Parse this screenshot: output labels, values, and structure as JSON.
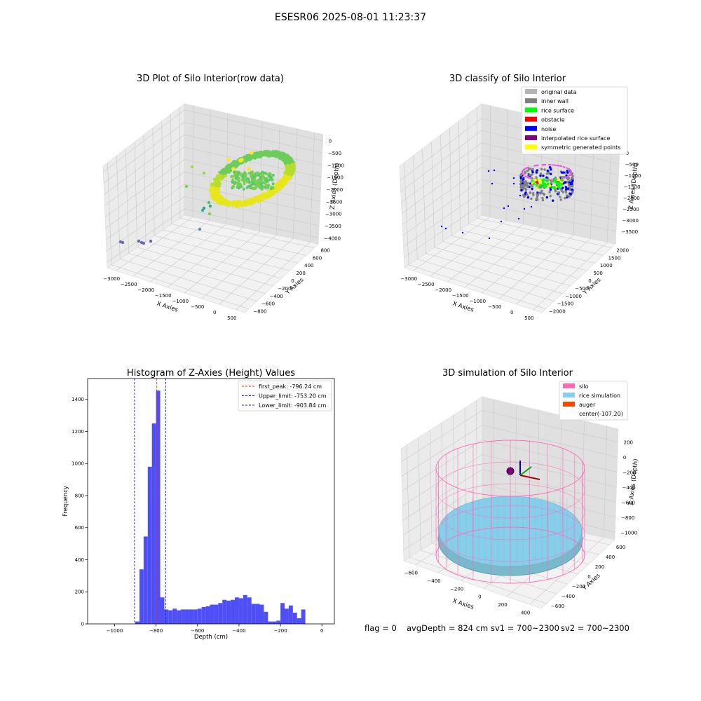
{
  "suptitle": "ESESR06 2025-08-01 11:23:37",
  "colors": {
    "hist_bar": "#4f4ff8",
    "first_peak": "#ee2222",
    "limit_line": "#2222cc",
    "silo": "#ff69b4",
    "rice_simulation": "#87ceeb",
    "auger": "#ff4500",
    "original_data": "#b3b3b3",
    "inner_wall": "#808080",
    "rice_surface": "#00ff00",
    "obstacle": "#ff0000",
    "noise": "#0000ff",
    "interpolated_rice_surface": "#800080",
    "symmetric_generated_points": "#ffff00"
  },
  "footer": {
    "flag": "flag = 0",
    "avg_depth": "avgDepth = 824 cm",
    "sv1": "sv1 = 700~2300",
    "sv2": "sv2 = 700~2300"
  },
  "chart_data": [
    {
      "type": "scatter",
      "title": "3D Plot of Silo Interior(row data)",
      "xlabel": "X Axies",
      "ylabel": "Y Axies",
      "zlabel": "Z Axies (Depth)",
      "x_ticks": [
        "−3000",
        "−2500",
        "−2000",
        "−1500",
        "−1000",
        "−500",
        "0",
        "500"
      ],
      "y_ticks": [
        "−800",
        "−600",
        "−400",
        "−200",
        "0",
        "200",
        "400",
        "600",
        "800"
      ],
      "z_ticks": [
        "0",
        "−500",
        "−1000",
        "−1500",
        "−2000",
        "−2500",
        "−3000",
        "−3500",
        "−4000"
      ],
      "xlim": [
        -3200,
        600
      ],
      "ylim": [
        -900,
        900
      ],
      "zlim": [
        -4200,
        200
      ]
    },
    {
      "type": "scatter",
      "title": "3D classify of Silo Interior",
      "xlabel": "X Axies",
      "ylabel": "Y Axies",
      "zlabel": "Z Axies (Depth)",
      "x_ticks": [
        "−3000",
        "−2500",
        "−2000",
        "−1500",
        "−1000",
        "−500",
        "0",
        "500"
      ],
      "y_ticks": [
        "−2000",
        "−1500",
        "−1000",
        "−500",
        "0",
        "500",
        "1000",
        "1500",
        "2000"
      ],
      "z_ticks": [
        "0",
        "−500",
        "−1000",
        "−1500",
        "−2000",
        "−2500",
        "−3000",
        "−3500"
      ],
      "legend": [
        "original data",
        "inner wall",
        "rice surface",
        "obstacle",
        "noise",
        "interpolated rice surface",
        "symmetric generated points"
      ],
      "legend_loc": "upper right"
    },
    {
      "type": "bar",
      "title": "Histogram of Z-Axies (Height) Values",
      "xlabel": "Depth (cm)",
      "ylabel": "Frequency",
      "xlim": [
        -1130,
        60
      ],
      "ylim": [
        0,
        1530
      ],
      "x_ticks": [
        -1000,
        -800,
        -600,
        -400,
        -200,
        0
      ],
      "y_ticks": [
        0,
        200,
        400,
        600,
        800,
        1000,
        1200,
        1400
      ],
      "bin_width": 20,
      "bin_left_edges": [
        -900,
        -880,
        -860,
        -840,
        -820,
        -800,
        -780,
        -760,
        -740,
        -720,
        -700,
        -680,
        -660,
        -640,
        -620,
        -600,
        -580,
        -560,
        -540,
        -520,
        -500,
        -480,
        -460,
        -440,
        -420,
        -400,
        -380,
        -360,
        -340,
        -320,
        -300,
        -280,
        -260,
        -240,
        -220,
        -200,
        -180,
        -160,
        -140,
        -120,
        -100,
        -80,
        -60,
        -40,
        -20
      ],
      "values": [
        15,
        340,
        545,
        980,
        1250,
        1455,
        165,
        90,
        85,
        95,
        85,
        90,
        90,
        90,
        90,
        95,
        105,
        110,
        120,
        120,
        130,
        150,
        145,
        150,
        165,
        160,
        180,
        165,
        125,
        125,
        120,
        75,
        15,
        15,
        20,
        130,
        95,
        115,
        70,
        35,
        90,
        0,
        0,
        0,
        0
      ],
      "lines": [
        {
          "name": "first_peak: -796.24 cm",
          "x": -796.24,
          "style": "red dashed"
        },
        {
          "name": "Upper_limit: -753.20 cm",
          "x": -753.2,
          "style": "blue dashed"
        },
        {
          "name": "Lower_limit: -903.84 cm",
          "x": -903.84,
          "style": "blue dashed"
        }
      ],
      "legend_loc": "upper right"
    },
    {
      "type": "scatter",
      "title": "3D simulation of Silo Interior",
      "xlabel": "X Axies",
      "ylabel": "Y Axies",
      "zlabel": "Z Axies (Depth)",
      "x_ticks": [
        "−600",
        "−400",
        "−200",
        "0",
        "200",
        "400"
      ],
      "y_ticks": [
        "−600",
        "−400",
        "−200",
        "0",
        "200",
        "400",
        "600"
      ],
      "z_ticks": [
        "200",
        "0",
        "−200",
        "−400",
        "−600",
        "−800",
        "−1000"
      ],
      "legend": [
        "silo",
        "rice simulation",
        "auger",
        "center(-107,20)"
      ],
      "legend_loc": "upper right"
    }
  ]
}
